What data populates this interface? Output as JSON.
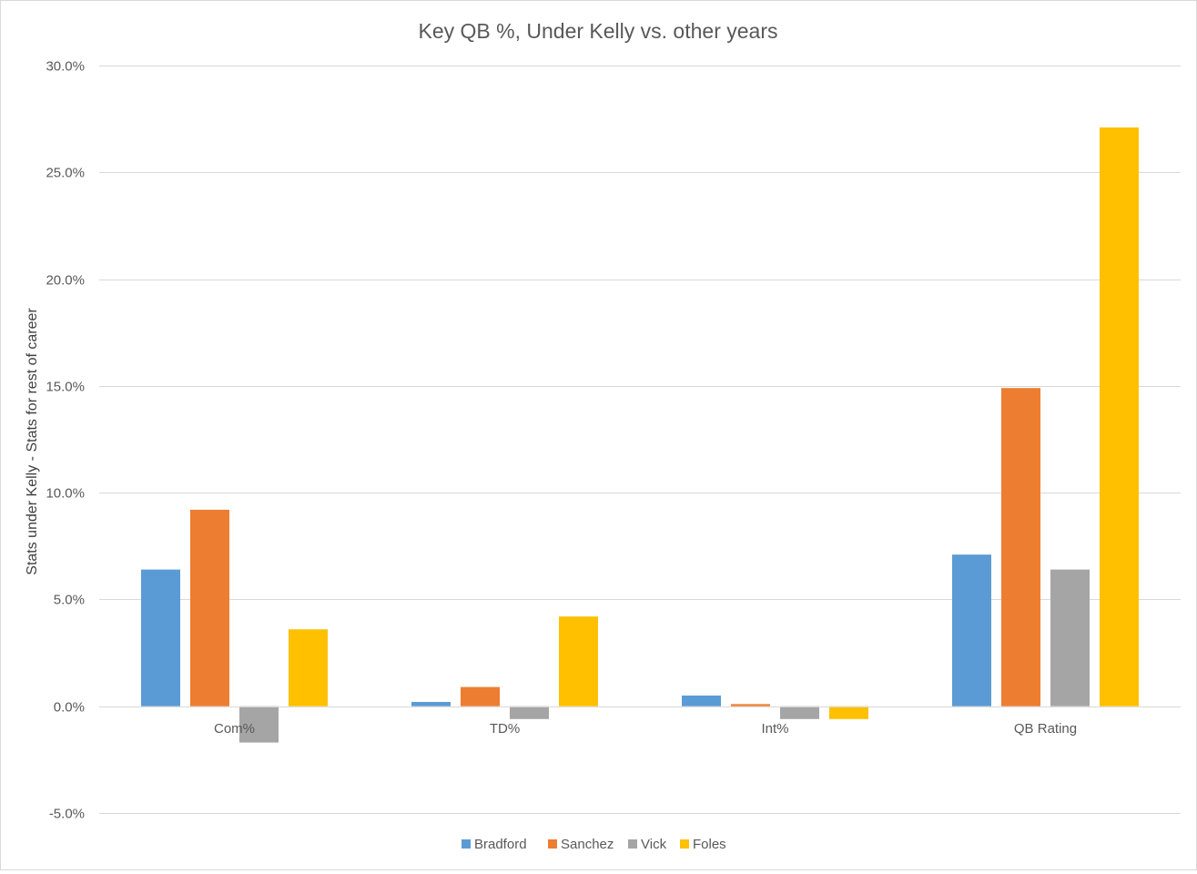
{
  "chart_data": {
    "type": "bar",
    "title": "Key QB %, Under Kelly vs. other years",
    "xlabel": "",
    "ylabel": "Stats under Kelly - Stats for rest of career",
    "categories": [
      "Com%",
      "TD%",
      "Int%",
      "QB Rating"
    ],
    "series": [
      {
        "name": "Bradford",
        "color": "#5b9bd5",
        "values": [
          0.064,
          0.002,
          0.005,
          0.071
        ]
      },
      {
        "name": "Sanchez",
        "color": "#ed7d31",
        "values": [
          0.092,
          0.009,
          0.001,
          0.149
        ]
      },
      {
        "name": "Vick",
        "color": "#a5a5a5",
        "values": [
          -0.017,
          -0.006,
          -0.006,
          0.064
        ]
      },
      {
        "name": "Foles",
        "color": "#ffc000",
        "values": [
          0.036,
          0.042,
          -0.006,
          0.271
        ]
      }
    ],
    "ylim": [
      -0.05,
      0.3
    ],
    "yticks": [
      -0.05,
      0.0,
      0.05,
      0.1,
      0.15,
      0.2,
      0.25,
      0.3
    ],
    "ytick_labels": [
      "-5.0%",
      "0.0%",
      "5.0%",
      "10.0%",
      "15.0%",
      "20.0%",
      "25.0%",
      "30.0%"
    ],
    "grid": true,
    "legend_position": "bottom",
    "colors": {
      "gridline": "#d9d9d9",
      "text": "#595959"
    }
  }
}
